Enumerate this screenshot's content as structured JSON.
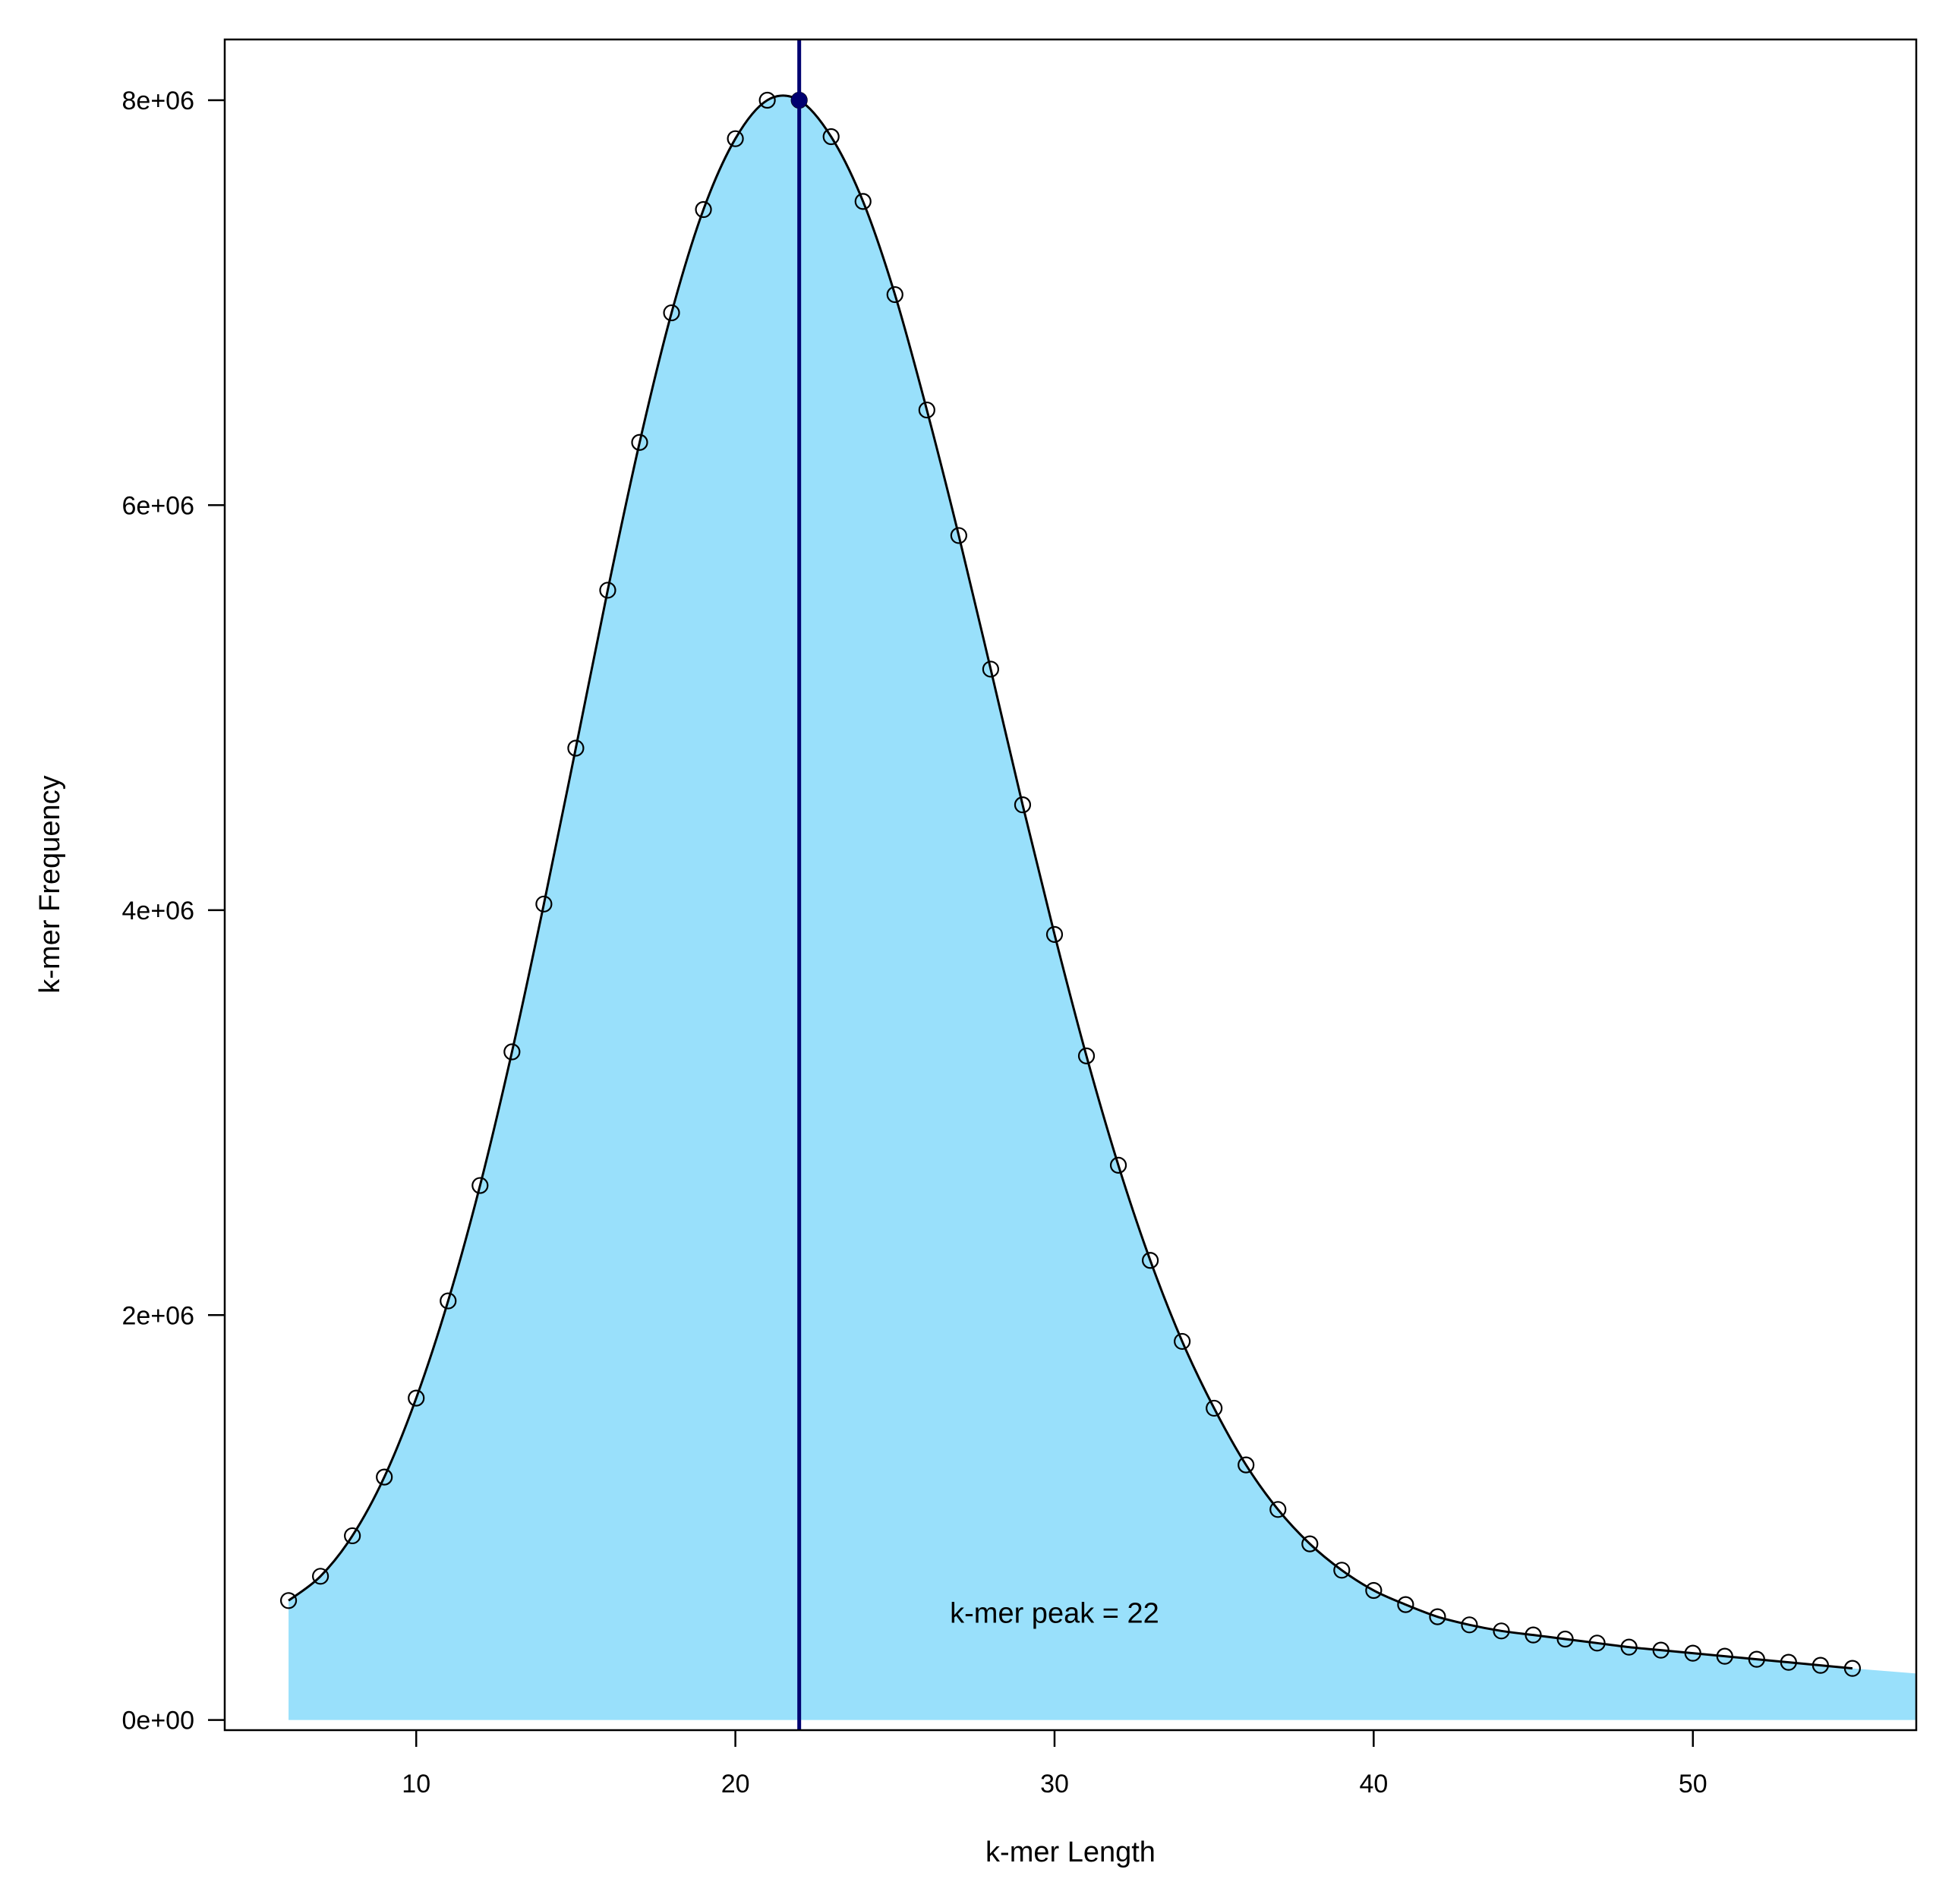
{
  "chart_data": {
    "type": "line",
    "title": "",
    "xlabel": "k-mer Length",
    "ylabel": "k-mer Frequency",
    "xlim": [
      4,
      57
    ],
    "ylim": [
      -50000,
      8300000
    ],
    "x_ticks": [
      10,
      20,
      30,
      40,
      50
    ],
    "x_tick_labels": [
      "10",
      "20",
      "30",
      "40",
      "50"
    ],
    "y_ticks": [
      0,
      2000000,
      4000000,
      6000000,
      8000000
    ],
    "y_tick_labels": [
      "0e+00",
      "2e+06",
      "4e+06",
      "6e+06",
      "8e+06"
    ],
    "grid": false,
    "fill_color": "#99e0fb",
    "line_color": "#000000",
    "peak_line_color": "#000070",
    "series": [
      {
        "x": [
          6,
          7,
          8,
          9,
          10,
          11,
          12,
          13,
          14,
          15,
          16,
          17,
          18,
          19,
          20,
          21,
          22,
          23,
          24,
          25,
          26,
          27,
          28,
          29,
          30,
          31,
          32,
          33,
          34,
          35,
          36,
          37,
          38,
          39,
          40,
          41,
          42,
          43,
          44,
          45,
          46,
          47,
          48,
          49,
          50,
          51,
          52,
          53,
          54,
          55
        ],
        "values": [
          590000,
          710000,
          910000,
          1200000,
          1590000,
          2070000,
          2640000,
          3300000,
          4030000,
          4800000,
          5580000,
          6310000,
          6950000,
          7460000,
          7810000,
          8000000,
          8000000,
          7820000,
          7500000,
          7040000,
          6470000,
          5850000,
          5190000,
          4520000,
          3880000,
          3280000,
          2740000,
          2270000,
          1870000,
          1540000,
          1260000,
          1040000,
          870000,
          740000,
          640000,
          570000,
          510000,
          470000,
          440000,
          420000,
          400000,
          380000,
          360000,
          345000,
          330000,
          315000,
          300000,
          285000,
          270000,
          255000
        ]
      }
    ],
    "peak": {
      "x": 22,
      "y": 8000000,
      "label": "k-mer peak = 22",
      "label_x": 30,
      "label_y": 530000
    },
    "fill_extend_to": {
      "x": 57,
      "y": 230000
    }
  }
}
